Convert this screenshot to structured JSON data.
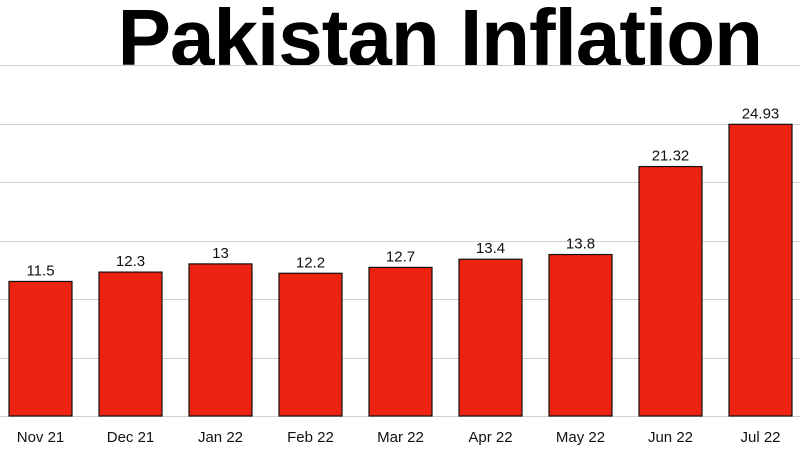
{
  "chart_data": {
    "type": "bar",
    "title": "Pakistan Inflation",
    "xlabel": "",
    "ylabel": "",
    "categories": [
      "Nov 21",
      "Dec 21",
      "Jan 22",
      "Feb 22",
      "Mar 22",
      "Apr 22",
      "May 22",
      "Jun 22",
      "Jul 22"
    ],
    "values": [
      11.5,
      12.3,
      13,
      12.2,
      12.7,
      13.4,
      13.8,
      21.32,
      24.93
    ],
    "value_labels": [
      "11.5",
      "12.3",
      "13",
      "12.2",
      "12.7",
      "13.4",
      "13.8",
      "21.32",
      "24.93"
    ],
    "ylim": [
      0,
      30
    ],
    "yticks": [
      0,
      5,
      10,
      15,
      20,
      25,
      30
    ],
    "grid": true,
    "legend": "none",
    "colors": {
      "bar": "#ee2210",
      "bar_edge": "#111111",
      "grid": "#d0d0d0",
      "text": "#111111"
    }
  }
}
